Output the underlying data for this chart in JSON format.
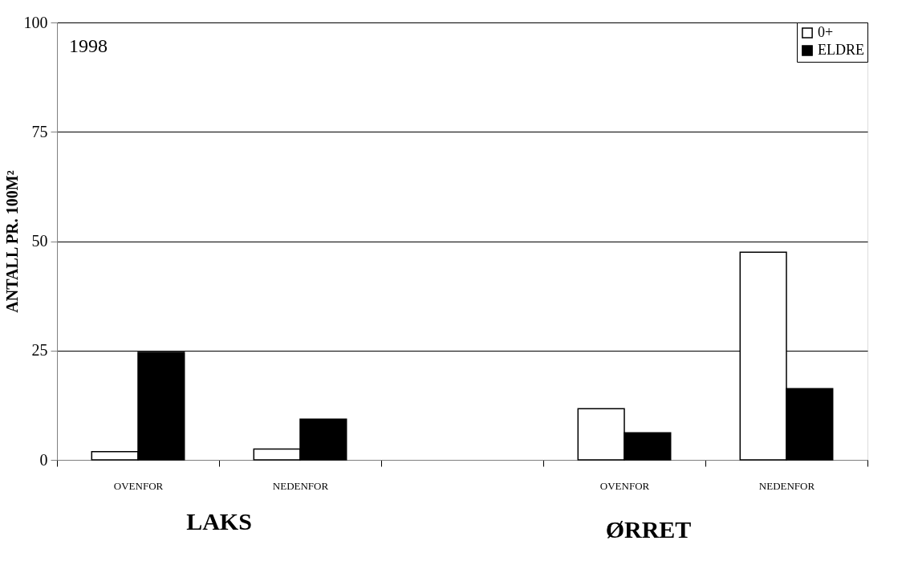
{
  "chart_data": {
    "type": "bar",
    "ylabel": "ANTALL PR. 100M²",
    "categories": [
      "OVENFOR",
      "NEDENFOR",
      null,
      "OVENFOR",
      "NEDENFOR"
    ],
    "series": [
      {
        "name": "0+",
        "color": "#ffffff",
        "values": [
          1.9,
          2.5,
          null,
          11.7,
          47.5
        ]
      },
      {
        "name": "ELDRE",
        "color": "#000000",
        "values": [
          24.6,
          9.3,
          null,
          6.2,
          16.3
        ]
      }
    ],
    "ylim": [
      0,
      100
    ],
    "yticks": [
      0,
      25,
      50,
      75,
      100
    ],
    "grid": "y",
    "legend": "top right",
    "annotations": [
      "1998",
      "LAKS",
      "ØRRET"
    ]
  }
}
